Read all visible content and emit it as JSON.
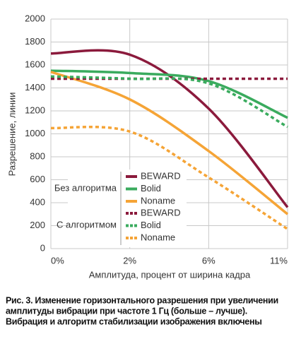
{
  "chart_data": {
    "type": "line",
    "categories": [
      "0%",
      "2%",
      "6%",
      "11%"
    ],
    "ylim": [
      0,
      2000
    ],
    "yticks": [
      0,
      200,
      400,
      600,
      800,
      1000,
      1200,
      1400,
      1600,
      1800,
      2000
    ],
    "grid": true,
    "x_label": "Амплитуда, процент от ширина кадра",
    "y_label": "Разрешение, линии",
    "series_groups": [
      {
        "title": "Без алгоритма",
        "dashed": false,
        "series": [
          {
            "name": "BEWARD",
            "color": "#8b1a3c",
            "values": [
              1700,
              1690,
              1220,
              360
            ]
          },
          {
            "name": "Bolid",
            "color": "#3aab5e",
            "values": [
              1550,
              1530,
              1460,
              1140
            ]
          },
          {
            "name": "Noname",
            "color": "#f5a436",
            "values": [
              1540,
              1300,
              850,
              300
            ]
          }
        ]
      },
      {
        "title": "С алгоритмом",
        "dashed": true,
        "series": [
          {
            "name": "BEWARD",
            "color": "#8b1a3c",
            "values": [
              1480,
              1480,
              1480,
              1480
            ]
          },
          {
            "name": "Bolid",
            "color": "#3aab5e",
            "values": [
              1500,
              1480,
              1440,
              1060
            ]
          },
          {
            "name": "Noname",
            "color": "#f5a436",
            "values": [
              1050,
              1020,
              620,
              170
            ]
          }
        ]
      }
    ],
    "caption": [
      "Рис. 3. Изменение горизонтального разрешения при увеличении",
      "амплитуды вибрации при частоте 1 Гц (больше – лучше).",
      "Вибрация и алгоритм стабилизации изображения включены"
    ]
  }
}
